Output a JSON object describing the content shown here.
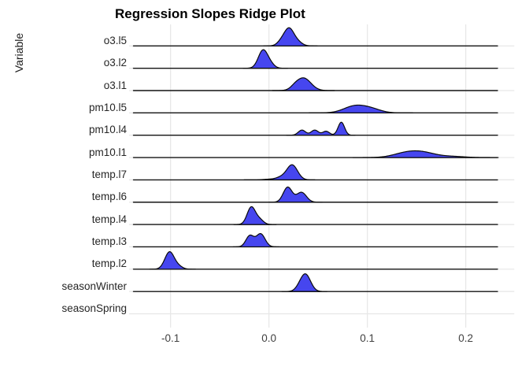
{
  "title": "Regression Slopes Ridge Plot",
  "y_axis_title": "Variable",
  "x_axis": {
    "ticks": [
      {
        "label": "-0.1",
        "value": -0.1
      },
      {
        "label": "0.0",
        "value": 0.0
      },
      {
        "label": "0.1",
        "value": 0.1
      },
      {
        "label": "0.2",
        "value": 0.2
      }
    ]
  },
  "colors": {
    "ridge_fill": "#4646ef",
    "ridge_stroke": "#0a0a0a",
    "baseline": "#141414",
    "grid": "#e6e6e6",
    "background": "#ffffff",
    "title_text": "#000000",
    "axis_text": "#262626"
  },
  "chart_data": {
    "type": "ridgeline",
    "title": "Regression Slopes Ridge Plot",
    "xlabel": "",
    "ylabel": "Variable",
    "xlim": [
      -0.137,
      0.233
    ],
    "x_ticks": [
      -0.1,
      0.0,
      0.1,
      0.2
    ],
    "grid": true,
    "legend": "none",
    "categories": [
      "o3.l5",
      "o3.l2",
      "o3.l1",
      "pm10.l5",
      "pm10.l4",
      "pm10.l1",
      "temp.l7",
      "temp.l6",
      "temp.l4",
      "temp.l3",
      "temp.l2",
      "seasonWinter",
      "seasonSpring"
    ],
    "series": [
      {
        "label": "o3.l5",
        "mode_x": 0.02,
        "peaks": [
          {
            "center": 0.0205,
            "sd": 0.0045,
            "height": 19
          },
          {
            "center": 0.0135,
            "sd": 0.0045,
            "height": 7
          },
          {
            "center": 0.028,
            "sd": 0.005,
            "height": 6
          }
        ]
      },
      {
        "label": "o3.l2",
        "mode_x": -0.006,
        "peaks": [
          {
            "center": -0.006,
            "sd": 0.0048,
            "height": 23
          },
          {
            "center": 0.002,
            "sd": 0.004,
            "height": 4
          }
        ]
      },
      {
        "label": "o3.l1",
        "mode_x": 0.035,
        "peaks": [
          {
            "center": 0.035,
            "sd": 0.0075,
            "height": 16
          },
          {
            "center": 0.026,
            "sd": 0.004,
            "height": 2
          }
        ]
      },
      {
        "label": "pm10.l5",
        "mode_x": 0.09,
        "peaks": [
          {
            "center": 0.087,
            "sd": 0.011,
            "height": 8.5
          },
          {
            "center": 0.104,
            "sd": 0.01,
            "height": 4.5
          }
        ]
      },
      {
        "label": "pm10.l4",
        "mode_x": 0.073,
        "peaks": [
          {
            "center": 0.0335,
            "sd": 0.0037,
            "height": 6.5
          },
          {
            "center": 0.0465,
            "sd": 0.0037,
            "height": 6.5
          },
          {
            "center": 0.058,
            "sd": 0.0035,
            "height": 5
          },
          {
            "center": 0.0735,
            "sd": 0.0033,
            "height": 16.5
          }
        ]
      },
      {
        "label": "pm10.l1",
        "mode_x": 0.148,
        "peaks": [
          {
            "center": 0.14,
            "sd": 0.013,
            "height": 6
          },
          {
            "center": 0.158,
            "sd": 0.012,
            "height": 5
          },
          {
            "center": 0.185,
            "sd": 0.013,
            "height": 1.5
          }
        ]
      },
      {
        "label": "temp.l7",
        "mode_x": 0.023,
        "peaks": [
          {
            "center": 0.0235,
            "sd": 0.0055,
            "height": 19
          },
          {
            "center": 0.012,
            "sd": 0.005,
            "height": 3
          },
          {
            "center": 0.0,
            "sd": 0.006,
            "height": 0.8
          }
        ]
      },
      {
        "label": "temp.l6",
        "mode_x": 0.019,
        "peaks": [
          {
            "center": 0.019,
            "sd": 0.0045,
            "height": 19
          },
          {
            "center": 0.033,
            "sd": 0.005,
            "height": 12.5
          }
        ]
      },
      {
        "label": "temp.l4",
        "mode_x": -0.018,
        "peaks": [
          {
            "center": -0.018,
            "sd": 0.0042,
            "height": 22
          },
          {
            "center": -0.0095,
            "sd": 0.004,
            "height": 6
          }
        ]
      },
      {
        "label": "temp.l3",
        "mode_x": -0.009,
        "peaks": [
          {
            "center": -0.0195,
            "sd": 0.004,
            "height": 14
          },
          {
            "center": -0.0085,
            "sd": 0.0045,
            "height": 16.5
          }
        ]
      },
      {
        "label": "temp.l2",
        "mode_x": -0.101,
        "peaks": [
          {
            "center": -0.101,
            "sd": 0.0048,
            "height": 22
          },
          {
            "center": -0.0915,
            "sd": 0.004,
            "height": 3
          }
        ]
      },
      {
        "label": "seasonWinter",
        "mode_x": 0.037,
        "peaks": [
          {
            "center": 0.037,
            "sd": 0.0052,
            "height": 22
          },
          {
            "center": 0.03,
            "sd": 0.004,
            "height": 2
          }
        ]
      },
      {
        "label": "seasonSpring",
        "mode_x": null,
        "peaks": []
      }
    ]
  }
}
